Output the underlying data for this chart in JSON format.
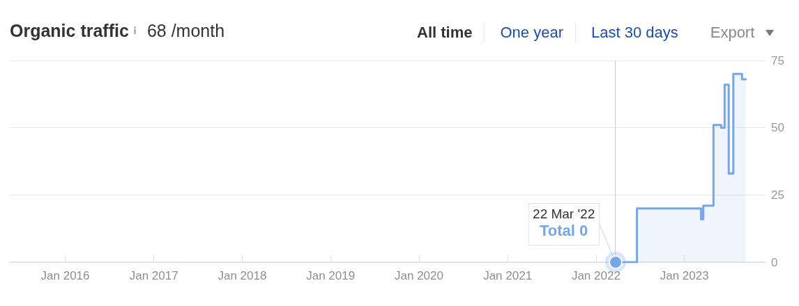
{
  "chart_data": {
    "type": "step",
    "title": "Organic traffic",
    "subtitle": "68 /month",
    "annotations": [
      "All time",
      "One year",
      "Last 30 days",
      "Export",
      {
        "text": "22 Mar '22",
        "x": "2022-03-22",
        "y": 0
      },
      {
        "text": "Total 0",
        "x": "2022-03-22",
        "y": 0
      }
    ],
    "x": [
      "2022-03-22",
      "2022-06-19",
      "2023-03-11",
      "2023-03-20",
      "2023-05-01",
      "2023-06-02",
      "2023-06-16",
      "2023-07-03",
      "2023-07-22",
      "2023-08-27",
      "2023-09-11"
    ],
    "series": [
      {
        "color": "#76a6e3",
        "values": [
          0,
          20,
          16,
          21,
          51,
          50,
          66,
          33,
          70,
          68,
          68
        ]
      }
    ],
    "xlim": [
      "2015-05-17",
      "2023-12-02"
    ],
    "xticks": [
      {
        "value": "2016-01",
        "label": "Jan 2016"
      },
      {
        "value": "2017-01",
        "label": "Jan 2017"
      },
      {
        "value": "2018-01",
        "label": "Jan 2018"
      },
      {
        "value": "2019-01",
        "label": "Jan 2019"
      },
      {
        "value": "2020-01",
        "label": "Jan 2020"
      },
      {
        "value": "2021-01",
        "label": "Jan 2021"
      },
      {
        "value": "2022-01",
        "label": "Jan 2022"
      },
      {
        "value": "2023-01",
        "label": "Jan 2023"
      }
    ],
    "ylim": [
      0,
      75
    ],
    "yticks": [
      0,
      25,
      50,
      75
    ],
    "grid": "y",
    "marker": "none",
    "ref_lines": [
      {
        "axis": "x",
        "value": "2022-03-22",
        "color": "#cccccc"
      }
    ]
  }
}
